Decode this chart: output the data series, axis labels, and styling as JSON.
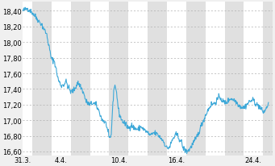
{
  "ylim": [
    16.55,
    18.52
  ],
  "yticks": [
    16.6,
    16.8,
    17.0,
    17.2,
    17.4,
    17.6,
    17.8,
    18.0,
    18.2,
    18.4
  ],
  "xtick_positions": [
    0,
    4,
    10,
    16,
    24
  ],
  "xtick_labels": [
    "31.3.",
    "4.4.",
    "10.4.",
    "16.4.",
    "24.4."
  ],
  "line_color": "#3da8d8",
  "line_width": 0.8,
  "bg_color": "#f0f0f0",
  "white_color": "#ffffff",
  "gray_color": "#e0e0e0",
  "grid_color": "#b0b0b0",
  "tick_fontsize": 6.0,
  "xlim": [
    0,
    26
  ]
}
